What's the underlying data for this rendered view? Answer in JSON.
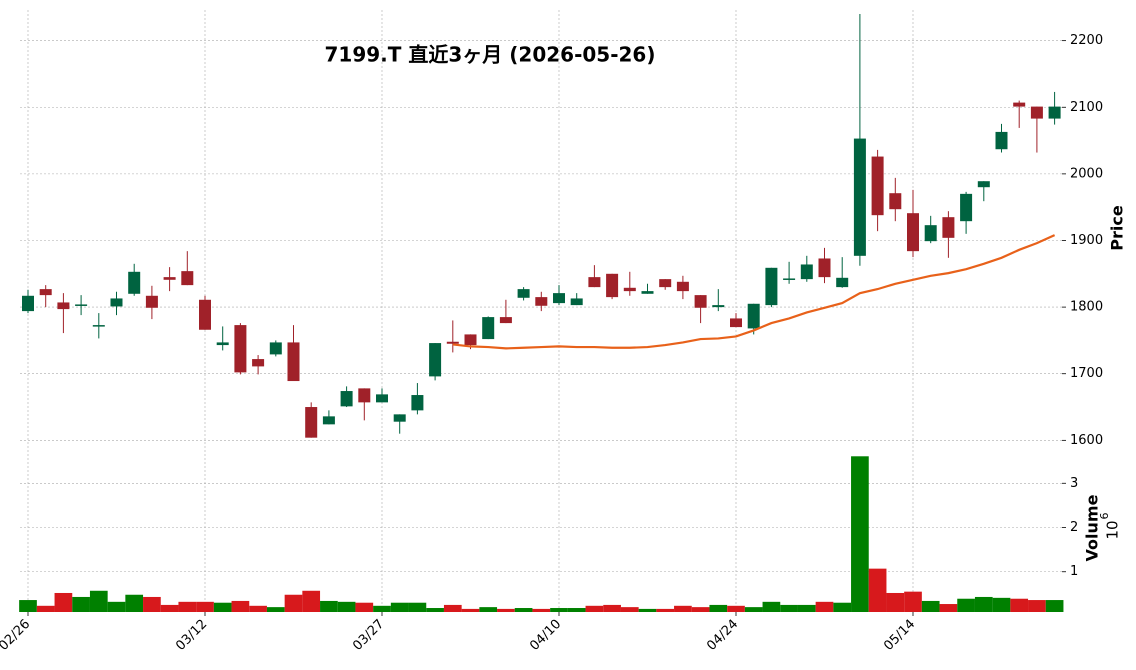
{
  "chart_data": {
    "type": "candlestick",
    "title": "7199.T  直近3ヶ月  (2026-05-26)",
    "y_label": "Price",
    "categories": [
      "02/26",
      null,
      null,
      null,
      null,
      null,
      null,
      null,
      null,
      null,
      "03/12",
      null,
      null,
      null,
      null,
      null,
      null,
      null,
      null,
      null,
      "03/27",
      null,
      null,
      null,
      null,
      null,
      null,
      null,
      null,
      null,
      "04/10",
      null,
      null,
      null,
      null,
      null,
      null,
      null,
      null,
      null,
      "04/24",
      null,
      null,
      null,
      null,
      null,
      null,
      null,
      null,
      null,
      "05/14",
      null,
      null,
      null,
      null,
      null,
      null,
      null,
      null
    ],
    "open": [
      1794,
      1827,
      1807,
      1802,
      1772,
      1801,
      1820,
      1817,
      1845,
      1854,
      1811,
      1743,
      1773,
      1722,
      1729,
      1747,
      1650,
      1624,
      1651,
      1678,
      1657,
      1628,
      1645,
      1696,
      1748,
      1759,
      1752,
      1785,
      1814,
      1815,
      1806,
      1803,
      1845,
      1850,
      1829,
      1820,
      1842,
      1838,
      1818,
      1800,
      1783,
      1768,
      1803,
      1842,
      1842,
      1873,
      1830,
      1877,
      2026,
      1971,
      1941,
      1899,
      1935,
      1929,
      1980,
      2037,
      2107,
      2101,
      2083
    ],
    "high": [
      1826,
      1833,
      1821,
      1818,
      1791,
      1823,
      1865,
      1832,
      1860,
      1884,
      1817,
      1771,
      1776,
      1728,
      1750,
      1773,
      1657,
      1645,
      1681,
      1678,
      1678,
      1639,
      1686,
      1746,
      1780,
      1759,
      1786,
      1811,
      1830,
      1823,
      1833,
      1821,
      1863,
      1850,
      1853,
      1835,
      1842,
      1847,
      1818,
      1827,
      1791,
      1805,
      1859,
      1868,
      1877,
      1889,
      1875,
      2240,
      2036,
      1994,
      1976,
      1937,
      1944,
      1973,
      1989,
      2075,
      2110,
      2101,
      2123
    ],
    "low": [
      1791,
      1800,
      1761,
      1788,
      1753,
      1788,
      1817,
      1782,
      1824,
      1833,
      1766,
      1735,
      1699,
      1699,
      1726,
      1689,
      1604,
      1624,
      1650,
      1630,
      1657,
      1610,
      1639,
      1690,
      1732,
      1737,
      1752,
      1776,
      1810,
      1794,
      1803,
      1803,
      1830,
      1812,
      1817,
      1820,
      1826,
      1812,
      1776,
      1794,
      1770,
      1759,
      1800,
      1835,
      1838,
      1836,
      1829,
      1862,
      1914,
      1929,
      1875,
      1896,
      1874,
      1910,
      1959,
      2032,
      2069,
      2032,
      2074
    ],
    "close": [
      1817,
      1818,
      1797,
      1804,
      1773,
      1813,
      1853,
      1799,
      1841,
      1833,
      1766,
      1747,
      1702,
      1711,
      1747,
      1689,
      1604,
      1636,
      1674,
      1657,
      1669,
      1639,
      1668,
      1746,
      1745,
      1743,
      1785,
      1776,
      1827,
      1802,
      1821,
      1813,
      1830,
      1815,
      1824,
      1824,
      1830,
      1824,
      1799,
      1803,
      1770,
      1805,
      1859,
      1843,
      1864,
      1845,
      1844,
      2053,
      1938,
      1947,
      1884,
      1923,
      1904,
      1970,
      1989,
      2063,
      2101,
      2083,
      2101
    ],
    "up_color": "#006340",
    "down_color": "#a02129",
    "ylim": [
      1590,
      2240
    ],
    "yticks": [
      1600,
      1700,
      1800,
      1900,
      2000,
      2100,
      2200
    ],
    "grid": true,
    "moving_average": {
      "color": "#e8611a",
      "values": [
        null,
        null,
        null,
        null,
        null,
        null,
        null,
        null,
        null,
        null,
        null,
        null,
        null,
        null,
        null,
        null,
        null,
        null,
        null,
        null,
        null,
        null,
        null,
        null,
        1744,
        1741,
        1740,
        1738,
        1739,
        1740,
        1741,
        1740,
        1740,
        1739,
        1739,
        1740,
        1743,
        1747,
        1752,
        1753,
        1756,
        1765,
        1776,
        1783,
        1792,
        1799,
        1806,
        1821,
        1827,
        1835,
        1841,
        1847,
        1851,
        1857,
        1865,
        1874,
        1886,
        1896,
        1908
      ]
    },
    "volume": {
      "label": "Volume",
      "scale_base": "10",
      "scale_exponent": "6",
      "up_color": "#008000",
      "down_color": "#d7191c",
      "values": [
        0.36,
        0.23,
        0.52,
        0.43,
        0.57,
        0.32,
        0.48,
        0.43,
        0.25,
        0.32,
        0.32,
        0.3,
        0.34,
        0.23,
        0.2,
        0.48,
        0.57,
        0.34,
        0.32,
        0.3,
        0.23,
        0.3,
        0.3,
        0.18,
        0.25,
        0.16,
        0.2,
        0.16,
        0.18,
        0.16,
        0.18,
        0.18,
        0.23,
        0.25,
        0.2,
        0.16,
        0.16,
        0.23,
        0.2,
        0.25,
        0.23,
        0.2,
        0.32,
        0.25,
        0.25,
        0.32,
        0.3,
        3.61,
        1.07,
        0.52,
        0.55,
        0.34,
        0.27,
        0.39,
        0.43,
        0.41,
        0.39,
        0.36,
        0.36
      ],
      "ylim": [
        0.09,
        3.82
      ],
      "yticks": [
        1,
        2,
        3
      ]
    }
  }
}
